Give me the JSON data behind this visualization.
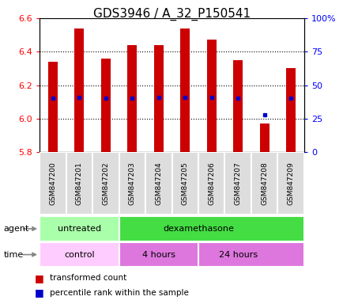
{
  "title": "GDS3946 / A_32_P150541",
  "samples": [
    "GSM847200",
    "GSM847201",
    "GSM847202",
    "GSM847203",
    "GSM847204",
    "GSM847205",
    "GSM847206",
    "GSM847207",
    "GSM847208",
    "GSM847209"
  ],
  "transformed_count": [
    6.34,
    6.54,
    6.36,
    6.44,
    6.44,
    6.54,
    6.47,
    6.35,
    5.97,
    6.3
  ],
  "bar_bottom": 5.8,
  "percentile_rank": [
    40,
    41,
    40,
    40,
    41,
    41,
    41,
    40,
    28,
    40
  ],
  "ylim_left": [
    5.8,
    6.6
  ],
  "ylim_right": [
    0,
    100
  ],
  "yticks_left": [
    5.8,
    6.0,
    6.2,
    6.4,
    6.6
  ],
  "yticks_right": [
    0,
    25,
    50,
    75,
    100
  ],
  "ytick_right_labels": [
    "0",
    "25",
    "50",
    "75",
    "100%"
  ],
  "bar_color": "#cc0000",
  "percentile_color": "#0000cc",
  "agent_groups": [
    {
      "label": "untreated",
      "start": 0,
      "end": 3,
      "color": "#aaffaa"
    },
    {
      "label": "dexamethasone",
      "start": 3,
      "end": 9,
      "color": "#44dd44"
    }
  ],
  "time_groups": [
    {
      "label": "control",
      "start": 0,
      "end": 3,
      "color": "#ffccff"
    },
    {
      "label": "4 hours",
      "start": 3,
      "end": 6,
      "color": "#dd77dd"
    },
    {
      "label": "24 hours",
      "start": 6,
      "end": 9,
      "color": "#dd77dd"
    }
  ],
  "legend_items": [
    {
      "label": "transformed count",
      "color": "#cc0000"
    },
    {
      "label": "percentile rank within the sample",
      "color": "#0000cc"
    }
  ],
  "title_fontsize": 11,
  "tick_fontsize": 8
}
